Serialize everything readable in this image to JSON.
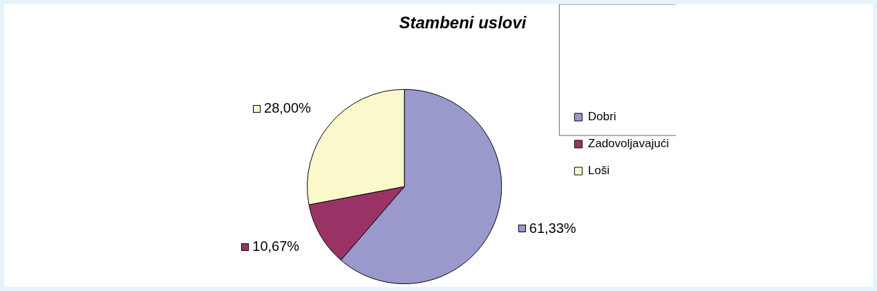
{
  "chart_data": {
    "type": "pie",
    "title": "Stambeni uslovi",
    "categories": [
      "Dobri",
      "Zadovoljavajući",
      "Loši"
    ],
    "values": [
      61.33,
      10.67,
      28.0
    ],
    "value_labels": [
      "61,33%",
      "10,67%",
      "28,00%"
    ],
    "colors": [
      "#9999cc",
      "#993366",
      "#fbf8cc"
    ],
    "legend": "right"
  }
}
